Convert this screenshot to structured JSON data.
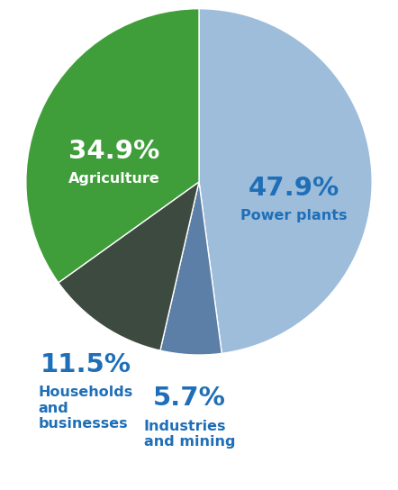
{
  "chart_data": {
    "type": "pie",
    "categories": [
      "Power plants",
      "Industries and mining",
      "Households and businesses",
      "Agriculture"
    ],
    "values": [
      47.9,
      5.7,
      11.5,
      34.9
    ],
    "value_labels": [
      "47.9%",
      "5.7%",
      "11.5%",
      "34.9%"
    ],
    "colors": [
      "#9dbddb",
      "#5b7fa6",
      "#3d4a3f",
      "#3f9e3a"
    ],
    "data_labels": true
  }
}
